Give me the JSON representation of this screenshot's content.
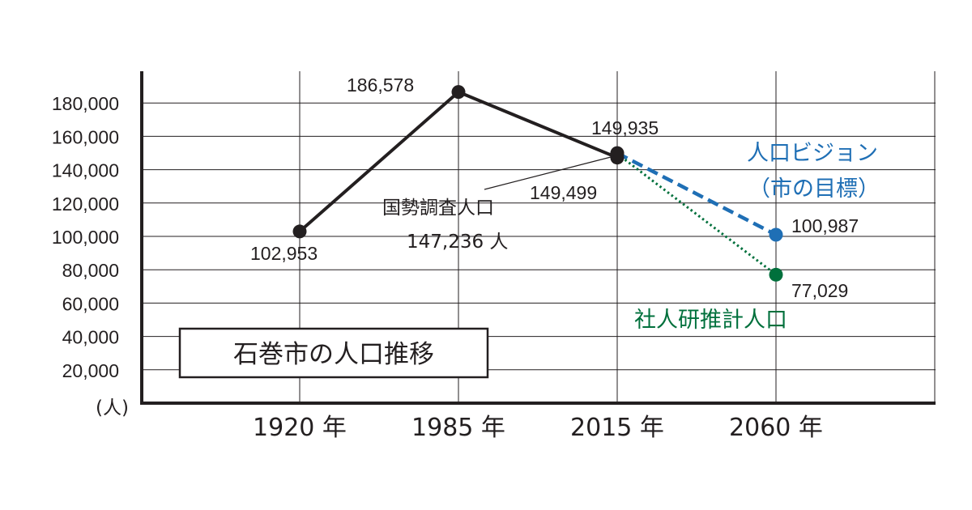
{
  "chart_data": {
    "type": "line",
    "title": "石巻市の人口推移",
    "y_unit_label": "(人)",
    "ylim": [
      0,
      200000
    ],
    "yticks": [
      "180,000",
      "160,000",
      "140,000",
      "120,000",
      "100,000",
      "80,000",
      "60,000",
      "40,000",
      "20,000"
    ],
    "ytick_values": [
      180000,
      160000,
      140000,
      120000,
      100000,
      80000,
      60000,
      40000,
      20000
    ],
    "categories": [
      "1920 年",
      "1985 年",
      "2015 年",
      "2060 年"
    ],
    "grid": true,
    "series": [
      {
        "name": "国勢調査人口",
        "style": "solid",
        "color": "#231f20",
        "points": [
          {
            "category": "1920 年",
            "value": 102953,
            "label": "102,953"
          },
          {
            "category": "1985 年",
            "value": 186578,
            "label": "186,578"
          },
          {
            "category": "2015 年",
            "value": 147236
          }
        ]
      },
      {
        "name": "人口ビジョン（市の目標）",
        "style": "dashed",
        "color": "#1f6fb5",
        "points": [
          {
            "category": "2015 年",
            "value": 149935,
            "label": "149,935"
          },
          {
            "category": "2060 年",
            "value": 100987,
            "label": "100,987"
          }
        ]
      },
      {
        "name": "社人研推計人口",
        "style": "dotted",
        "color": "#00703c",
        "points": [
          {
            "category": "2015 年",
            "value": 149499,
            "label": "149,499"
          },
          {
            "category": "2060 年",
            "value": 77029,
            "label": "77,029"
          }
        ]
      }
    ],
    "annotations": {
      "census_name": "国勢調査人口",
      "census_value": "147,236 人",
      "vision_line1": "人口ビジョン",
      "vision_line2": "（市の目標）",
      "ipss_name": "社人研推計人口"
    }
  }
}
